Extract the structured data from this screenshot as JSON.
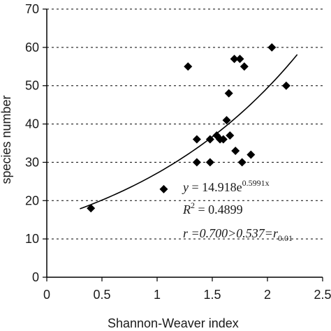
{
  "chart_data": {
    "type": "scatter",
    "title": "",
    "xlabel": "Shannon-Weaver index",
    "ylabel": "species number",
    "xlim": [
      0,
      2.5
    ],
    "ylim": [
      0,
      70
    ],
    "xticks": [
      "0",
      "0.5",
      "1",
      "1.5",
      "2",
      "2.5"
    ],
    "yticks": [
      "0",
      "10",
      "20",
      "30",
      "40",
      "50",
      "60",
      "70"
    ],
    "grid": "horizontal dashed",
    "points": [
      {
        "x": 0.4,
        "y": 18
      },
      {
        "x": 1.06,
        "y": 23
      },
      {
        "x": 1.28,
        "y": 55
      },
      {
        "x": 1.36,
        "y": 36
      },
      {
        "x": 1.36,
        "y": 30
      },
      {
        "x": 1.48,
        "y": 36
      },
      {
        "x": 1.48,
        "y": 30
      },
      {
        "x": 1.54,
        "y": 37
      },
      {
        "x": 1.57,
        "y": 36
      },
      {
        "x": 1.6,
        "y": 36
      },
      {
        "x": 1.63,
        "y": 41
      },
      {
        "x": 1.65,
        "y": 48
      },
      {
        "x": 1.66,
        "y": 37
      },
      {
        "x": 1.7,
        "y": 57
      },
      {
        "x": 1.71,
        "y": 33
      },
      {
        "x": 1.75,
        "y": 57
      },
      {
        "x": 1.77,
        "y": 30
      },
      {
        "x": 1.79,
        "y": 55
      },
      {
        "x": 1.85,
        "y": 32
      },
      {
        "x": 2.04,
        "y": 60
      },
      {
        "x": 2.17,
        "y": 50
      }
    ],
    "trendline": {
      "type": "exponential",
      "a": 14.918,
      "b": 0.5991,
      "x_range": [
        0.3,
        2.27
      ]
    },
    "annotations": {
      "equation_prefix": "y",
      "equation_main": " = 14.918e",
      "equation_exp": "0.5991x",
      "r2_label": "R",
      "r2_sup": "2",
      "r2_value": " = 0.4899",
      "r_main": "r =0.700>0.537=r",
      "r_sub": "0.01"
    }
  }
}
